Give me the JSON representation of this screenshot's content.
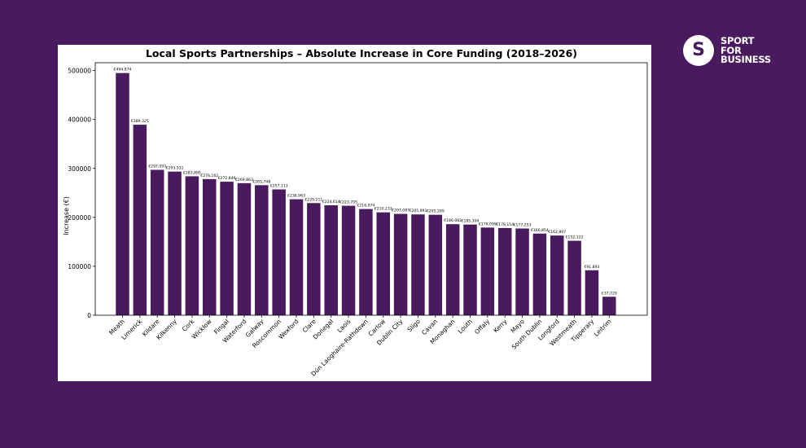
{
  "logo": {
    "line1": "SPORT",
    "line2": "FOR",
    "line3": "BUSINESS"
  },
  "chart_data": {
    "type": "bar",
    "title": "Local Sports Partnerships – Absolute Increase in Core Funding (2018–2026)",
    "xlabel": "",
    "ylabel": "Increase (€)",
    "ylim": [
      0,
      520000
    ],
    "yticks": [
      0,
      100000,
      200000,
      300000,
      400000,
      500000
    ],
    "bar_color": "#4a1a5e",
    "categories": [
      "Meath",
      "Limerick",
      "Kildare",
      "Kilkenny",
      "Cork",
      "Wicklow",
      "Fingal",
      "Waterford",
      "Galway",
      "Roscommon",
      "Wexford",
      "Clare",
      "Donegal",
      "Laois",
      "Dún Laoghaire-Rathdown",
      "Carlow",
      "Dublin City",
      "Sligo",
      "Cavan",
      "Monaghan",
      "Louth",
      "Offaly",
      "Kerry",
      "Mayo",
      "South Dublin",
      "Longford",
      "Westmeath",
      "Tipperary",
      "Leitrim"
    ],
    "values": [
      494874,
      389325,
      297093,
      293531,
      283895,
      278162,
      272846,
      269863,
      265748,
      257113,
      236963,
      229211,
      224614,
      223705,
      216974,
      210233,
      207087,
      205991,
      205269,
      186082,
      185304,
      179099,
      178154,
      177253,
      166854,
      162807,
      152122,
      91893,
      37729
    ],
    "data_labels": [
      "€494,874",
      "€389,325",
      "€297,093",
      "€293,531",
      "€283,895",
      "€278,162",
      "€272,846",
      "€269,863",
      "€265,748",
      "€257,113",
      "€236,963",
      "€229,211",
      "€224,614",
      "€223,705",
      "€216,974",
      "€210,233",
      "€207,087",
      "€205,991",
      "€205,269",
      "€186,082",
      "€185,304",
      "€179,099",
      "€178,154",
      "€177,253",
      "€166,854",
      "€162,807",
      "€152,122",
      "€91,893",
      "€37,729"
    ]
  }
}
